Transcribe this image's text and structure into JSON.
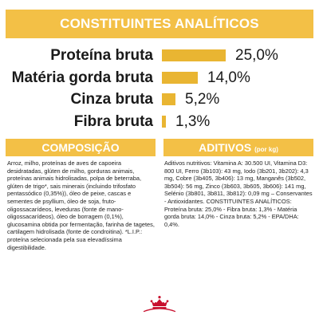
{
  "header": {
    "title": "CONSTITUINTES ANALÍTICOS"
  },
  "constituents": [
    {
      "label": "Proteína bruta",
      "value": "25,0%",
      "fraction": 0.25
    },
    {
      "label": "Matéria gorda bruta",
      "value": "14,0%",
      "fraction": 0.14
    },
    {
      "label": "Cinza bruta",
      "value": "5,2%",
      "fraction": 0.052
    },
    {
      "label": "Fibra bruta",
      "value": "1,3%",
      "fraction": 0.013
    }
  ],
  "composition": {
    "title": "COMPOSIÇÃO",
    "text": "Arroz, milho, proteínas de aves de capoeira desidratadas, glúten de milho, gorduras animais, proteínas animais hidrolisadas, polpa de beterraba, glúten de trigo*, sais minerais (incluindo trifosfato pentassódico (0,35%)), óleo de peixe, cascas e sementes de psyllium, óleo de soja, fruto-oligossacarídeos, leveduras (fonte de mano-oligossacarídeos), óleo de borragem (0,1%), glucosamina obtida por fermentação, farinha de tagetes, cartilagem hidrolisada (fonte de condroitina). *L.I.P.: proteína selecionada pela sua elevadíssima digestibilidade."
  },
  "additives": {
    "title": "ADITIVOS",
    "subtitle": "(por kg)",
    "text": "Aditivos nutritivos: Vitamina A: 30.500 UI, Vitamina D3: 800 UI, Ferro (3b103): 43 mg, Iodo (3b201, 3b202): 4,3 mg, Cobre (3b405, 3b406): 13 mg, Manganês (3b502, 3b504): 56 mg, Zinco (3b603, 3b605, 3b606): 141 mg, Selénio (3b801, 3b811, 3b812): 0,09 mg – Conservantes - Antioxidantes. CONSTITUINTES ANALÍTICOS: Proteína bruta: 25,0% - Fibra bruta: 1,3% - Matéria gorda bruta: 14,0% - Cinza bruta: 5,2% - EPA/DHA: 0,4%."
  },
  "colors": {
    "banner": "#f3c046",
    "bar": "#e9b532"
  },
  "logo": {
    "name": "royal-canin-crown-logo",
    "color": "#c8102e"
  }
}
